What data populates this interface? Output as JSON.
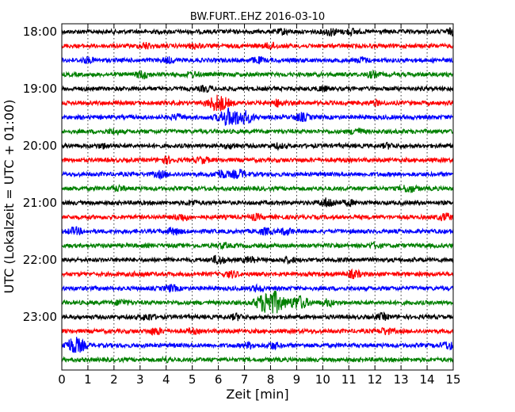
{
  "chart_data": {
    "type": "line",
    "title": "BW.FURT..EHZ 2016-03-10",
    "xlabel": "Zeit  [min]",
    "ylabel": "UTC (Lokalzeit = UTC + 01:00)",
    "xlim": [
      0,
      15
    ],
    "x_ticks": [
      "0",
      "1",
      "2",
      "3",
      "4",
      "5",
      "6",
      "7",
      "8",
      "9",
      "10",
      "11",
      "12",
      "13",
      "14",
      "15"
    ],
    "y_ticks": [
      "18:00",
      "19:00",
      "20:00",
      "21:00",
      "22:00",
      "23:00"
    ],
    "x_grid": true,
    "trace_colors": [
      "#000000",
      "#ff0000",
      "#0000ff",
      "#008000"
    ],
    "traces": [
      {
        "start": "18:00",
        "bursts": [
          {
            "t": 10.3,
            "amp": 1.2
          },
          {
            "t": 11.1,
            "amp": 0.9
          },
          {
            "t": 8.5,
            "amp": 0.8
          },
          {
            "t": 15.0,
            "amp": 1.0
          }
        ]
      },
      {
        "start": "18:15",
        "bursts": [
          {
            "t": 3.2,
            "amp": 0.9
          },
          {
            "t": 5.1,
            "amp": 0.8
          },
          {
            "t": 8.0,
            "amp": 1.0
          }
        ]
      },
      {
        "start": "18:30",
        "bursts": [
          {
            "t": 1.0,
            "amp": 0.8
          },
          {
            "t": 4.1,
            "amp": 0.8
          },
          {
            "t": 7.5,
            "amp": 0.9
          },
          {
            "t": 11.5,
            "amp": 0.8
          }
        ]
      },
      {
        "start": "18:45",
        "bursts": [
          {
            "t": 3.1,
            "amp": 1.2
          },
          {
            "t": 5.0,
            "amp": 0.8
          },
          {
            "t": 11.9,
            "amp": 0.9
          }
        ]
      },
      {
        "start": "19:00",
        "bursts": [
          {
            "t": 5.5,
            "amp": 0.8
          },
          {
            "t": 10.0,
            "amp": 0.7
          }
        ]
      },
      {
        "start": "19:15",
        "bursts": [
          {
            "t": 6.0,
            "amp": 2.8
          },
          {
            "t": 8.3,
            "amp": 1.1
          },
          {
            "t": 12.0,
            "amp": 0.7
          }
        ]
      },
      {
        "start": "19:30",
        "bursts": [
          {
            "t": 6.4,
            "amp": 3.0
          },
          {
            "t": 7.0,
            "amp": 2.0
          },
          {
            "t": 9.2,
            "amp": 1.3
          },
          {
            "t": 4.4,
            "amp": 0.8
          }
        ]
      },
      {
        "start": "19:45",
        "bursts": [
          {
            "t": 11.3,
            "amp": 1.0
          },
          {
            "t": 2.0,
            "amp": 0.7
          }
        ]
      },
      {
        "start": "20:00",
        "bursts": [
          {
            "t": 1.6,
            "amp": 0.7
          },
          {
            "t": 6.5,
            "amp": 0.7
          },
          {
            "t": 8.3,
            "amp": 0.7
          },
          {
            "t": 12.5,
            "amp": 0.7
          }
        ]
      },
      {
        "start": "20:15",
        "bursts": [
          {
            "t": 4.0,
            "amp": 1.0
          },
          {
            "t": 5.4,
            "amp": 0.9
          }
        ]
      },
      {
        "start": "20:30",
        "bursts": [
          {
            "t": 3.8,
            "amp": 1.0
          },
          {
            "t": 6.1,
            "amp": 1.3
          },
          {
            "t": 6.8,
            "amp": 1.4
          }
        ]
      },
      {
        "start": "20:45",
        "bursts": [
          {
            "t": 2.2,
            "amp": 0.8
          },
          {
            "t": 13.3,
            "amp": 1.2
          }
        ]
      },
      {
        "start": "21:00",
        "bursts": [
          {
            "t": 10.2,
            "amp": 1.5
          },
          {
            "t": 5.0,
            "amp": 0.7
          },
          {
            "t": 11.0,
            "amp": 0.8
          }
        ]
      },
      {
        "start": "21:15",
        "bursts": [
          {
            "t": 4.6,
            "amp": 1.1
          },
          {
            "t": 7.4,
            "amp": 0.8
          },
          {
            "t": 14.7,
            "amp": 1.1
          }
        ]
      },
      {
        "start": "21:30",
        "bursts": [
          {
            "t": 0.5,
            "amp": 1.1
          },
          {
            "t": 4.3,
            "amp": 1.0
          },
          {
            "t": 7.8,
            "amp": 1.0
          },
          {
            "t": 8.6,
            "amp": 1.0
          }
        ]
      },
      {
        "start": "21:45",
        "bursts": [
          {
            "t": 6.2,
            "amp": 0.7
          },
          {
            "t": 12.0,
            "amp": 0.7
          }
        ]
      },
      {
        "start": "22:00",
        "bursts": [
          {
            "t": 6.0,
            "amp": 1.3
          },
          {
            "t": 7.2,
            "amp": 0.9
          },
          {
            "t": 8.7,
            "amp": 0.9
          }
        ]
      },
      {
        "start": "22:15",
        "bursts": [
          {
            "t": 6.5,
            "amp": 1.0
          },
          {
            "t": 11.2,
            "amp": 1.2
          },
          {
            "t": 3.0,
            "amp": 0.7
          }
        ]
      },
      {
        "start": "22:30",
        "bursts": [
          {
            "t": 4.2,
            "amp": 1.0
          },
          {
            "t": 7.5,
            "amp": 0.9
          }
        ]
      },
      {
        "start": "22:45",
        "bursts": [
          {
            "t": 8.0,
            "amp": 4.5
          },
          {
            "t": 9.1,
            "amp": 2.3
          },
          {
            "t": 10.2,
            "amp": 1.0
          },
          {
            "t": 2.3,
            "amp": 0.9
          }
        ]
      },
      {
        "start": "23:00",
        "bursts": [
          {
            "t": 3.3,
            "amp": 1.0
          },
          {
            "t": 6.7,
            "amp": 0.9
          },
          {
            "t": 12.3,
            "amp": 0.9
          }
        ]
      },
      {
        "start": "23:15",
        "bursts": [
          {
            "t": 3.6,
            "amp": 1.1
          },
          {
            "t": 12.4,
            "amp": 1.0
          },
          {
            "t": 5.0,
            "amp": 0.7
          }
        ]
      },
      {
        "start": "23:30",
        "bursts": [
          {
            "t": 0.5,
            "amp": 2.8
          },
          {
            "t": 7.2,
            "amp": 0.9
          },
          {
            "t": 8.1,
            "amp": 1.0
          },
          {
            "t": 14.8,
            "amp": 1.2
          }
        ]
      },
      {
        "start": "23:45",
        "bursts": [
          {
            "t": 4.0,
            "amp": 0.6
          }
        ]
      }
    ]
  }
}
